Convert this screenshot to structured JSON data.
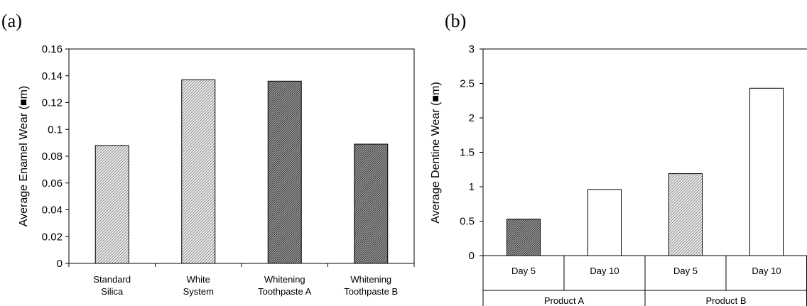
{
  "chart_data": [
    {
      "panel_label": "(a)",
      "type": "bar",
      "ylabel": "Average Enamel Wear (■m)",
      "ylim": [
        0,
        0.16
      ],
      "yticks": [
        "0",
        "0.02",
        "0.04",
        "0.06",
        "0.08",
        "0.1",
        "0.12",
        "0.14",
        "0.16"
      ],
      "categories": [
        {
          "lines": [
            "Standard",
            "Silica"
          ]
        },
        {
          "lines": [
            "White",
            "System"
          ]
        },
        {
          "lines": [
            "Whitening",
            "Toothpaste A"
          ]
        },
        {
          "lines": [
            "Whitening",
            "Toothpaste B"
          ]
        }
      ],
      "values": [
        0.088,
        0.137,
        0.136,
        0.089
      ],
      "patterns": [
        "light-hatch",
        "light-hatch",
        "dark-hatch",
        "dark-hatch"
      ],
      "grid": false
    },
    {
      "panel_label": "(b)",
      "type": "bar",
      "ylabel": "Average Dentine Wear (■m)",
      "ylim": [
        0,
        3
      ],
      "yticks": [
        "0",
        "0.5",
        "1",
        "1.5",
        "2",
        "2.5",
        "3"
      ],
      "categories": [
        "Day 5",
        "Day 10",
        "Day 5",
        "Day 10"
      ],
      "groups": [
        "Product A",
        "Product B"
      ],
      "values": [
        0.53,
        0.96,
        1.19,
        2.43
      ],
      "patterns": [
        "dark-hatch",
        "white",
        "light-hatch",
        "white"
      ],
      "grid": false
    }
  ]
}
